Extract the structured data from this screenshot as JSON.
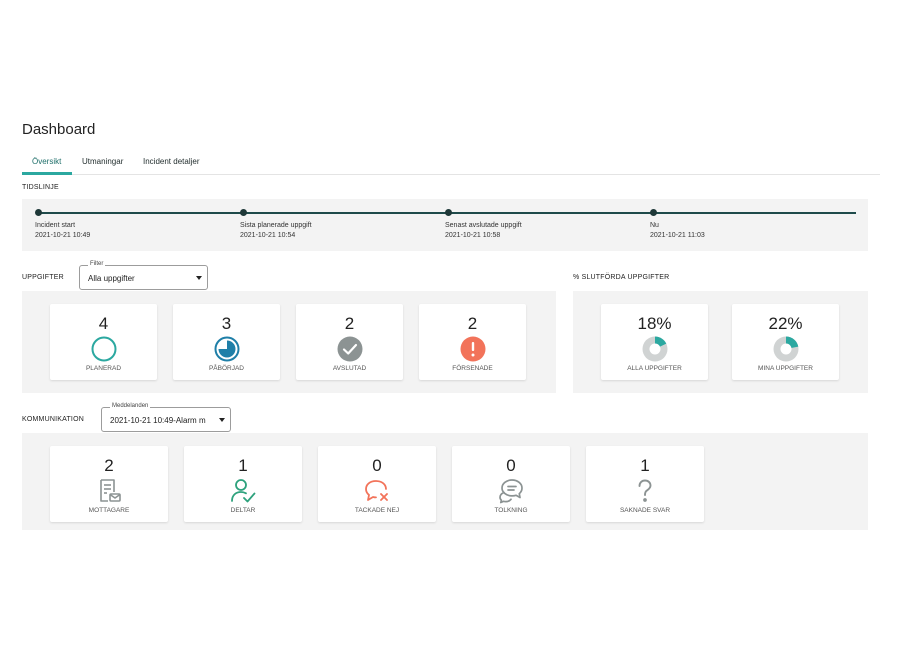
{
  "page": {
    "title": "Dashboard"
  },
  "tabs": [
    {
      "label": "Översikt",
      "active": true
    },
    {
      "label": "Utmaningar",
      "active": false
    },
    {
      "label": "Incident detaljer",
      "active": false
    }
  ],
  "timeline": {
    "label": "TIDSLINJE",
    "points": [
      {
        "label": "Incident start",
        "time": "2021-10-21 10:49"
      },
      {
        "label": "Sista planerade uppgift",
        "time": "2021-10-21 10:54"
      },
      {
        "label": "Senast avslutade uppgift",
        "time": "2021-10-21 10:58"
      },
      {
        "label": "Nu",
        "time": "2021-10-21 11:03"
      }
    ]
  },
  "tasks": {
    "label": "UPPGIFTER",
    "filter": {
      "legend": "Filter",
      "value": "Alla uppgifter"
    },
    "cards": [
      {
        "count": "4",
        "label": "PLANERAD",
        "icon": "empty-circle-icon",
        "progress": 0
      },
      {
        "count": "3",
        "label": "PÅBÖRJAD",
        "icon": "progress-circle-icon",
        "progress": 0.75
      },
      {
        "count": "2",
        "label": "AVSLUTAD",
        "icon": "check-circle-icon"
      },
      {
        "count": "2",
        "label": "FÖRSENADE",
        "icon": "exclamation-circle-icon"
      }
    ]
  },
  "completion": {
    "label": "% SLUTFÖRDA UPPGIFTER",
    "cards": [
      {
        "value": "18%",
        "label": "ALLA UPPGIFTER",
        "fraction": 0.18
      },
      {
        "value": "22%",
        "label": "MINA UPPGIFTER",
        "fraction": 0.22
      }
    ]
  },
  "communication": {
    "label": "KOMMUNIKATION",
    "select": {
      "legend": "Meddelanden",
      "value": "2021-10-21 10:49-Alarm m"
    },
    "cards": [
      {
        "count": "2",
        "label": "MOTTAGARE",
        "icon": "document-mail-icon"
      },
      {
        "count": "1",
        "label": "DELTAR",
        "icon": "person-check-icon"
      },
      {
        "count": "0",
        "label": "TACKADE NEJ",
        "icon": "chat-declined-icon"
      },
      {
        "count": "0",
        "label": "TOLKNING",
        "icon": "chat-bubbles-icon"
      },
      {
        "count": "1",
        "label": "SAKNADE SVAR",
        "icon": "question-mark-icon"
      }
    ]
  },
  "colors": {
    "accent": "#2ba8a0",
    "planned": "#2ba8a0",
    "started": "#1f7fa8",
    "done": "#8c9393",
    "late": "#f2735a",
    "participant": "#2ea27d",
    "declined": "#f2735a",
    "neutral": "#8c9393",
    "timeline": "#1e3838"
  }
}
